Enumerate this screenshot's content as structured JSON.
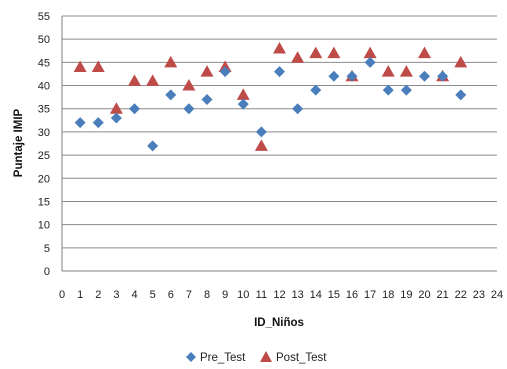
{
  "chart_data": {
    "type": "scatter",
    "xlabel": "ID_Niños",
    "ylabel": "Puntaje IMIP",
    "xlim": [
      0,
      24
    ],
    "ylim": [
      0,
      55
    ],
    "x_ticks": [
      "0",
      "1",
      "2",
      "3",
      "4",
      "5",
      "6",
      "7",
      "8",
      "9",
      "10",
      "11",
      "12",
      "13",
      "14",
      "15",
      "16",
      "17",
      "18",
      "19",
      "20",
      "21",
      "22",
      "23",
      "24"
    ],
    "y_ticks": [
      "0",
      "5",
      "10",
      "15",
      "20",
      "25",
      "30",
      "35",
      "40",
      "45",
      "50",
      "55"
    ],
    "grid": true,
    "legend_position": "bottom",
    "series": [
      {
        "name": "Pre_Test",
        "marker": "diamond",
        "color": "#4a7ebb",
        "points": [
          {
            "x": 1,
            "y": 32
          },
          {
            "x": 2,
            "y": 32
          },
          {
            "x": 3,
            "y": 33
          },
          {
            "x": 4,
            "y": 35
          },
          {
            "x": 5,
            "y": 27
          },
          {
            "x": 6,
            "y": 38
          },
          {
            "x": 7,
            "y": 35
          },
          {
            "x": 8,
            "y": 37
          },
          {
            "x": 9,
            "y": 43
          },
          {
            "x": 10,
            "y": 36
          },
          {
            "x": 11,
            "y": 30
          },
          {
            "x": 12,
            "y": 43
          },
          {
            "x": 13,
            "y": 35
          },
          {
            "x": 14,
            "y": 39
          },
          {
            "x": 15,
            "y": 42
          },
          {
            "x": 16,
            "y": 42
          },
          {
            "x": 17,
            "y": 45
          },
          {
            "x": 18,
            "y": 39
          },
          {
            "x": 19,
            "y": 39
          },
          {
            "x": 20,
            "y": 42
          },
          {
            "x": 21,
            "y": 42
          },
          {
            "x": 22,
            "y": 38
          }
        ]
      },
      {
        "name": "Post_Test",
        "marker": "triangle",
        "color": "#be4b48",
        "points": [
          {
            "x": 1,
            "y": 44
          },
          {
            "x": 2,
            "y": 44
          },
          {
            "x": 3,
            "y": 35
          },
          {
            "x": 4,
            "y": 41
          },
          {
            "x": 5,
            "y": 41
          },
          {
            "x": 6,
            "y": 45
          },
          {
            "x": 7,
            "y": 40
          },
          {
            "x": 8,
            "y": 43
          },
          {
            "x": 9,
            "y": 44
          },
          {
            "x": 10,
            "y": 38
          },
          {
            "x": 11,
            "y": 27
          },
          {
            "x": 12,
            "y": 48
          },
          {
            "x": 13,
            "y": 46
          },
          {
            "x": 14,
            "y": 47
          },
          {
            "x": 15,
            "y": 47
          },
          {
            "x": 16,
            "y": 42
          },
          {
            "x": 17,
            "y": 47
          },
          {
            "x": 18,
            "y": 43
          },
          {
            "x": 19,
            "y": 43
          },
          {
            "x": 20,
            "y": 47
          },
          {
            "x": 21,
            "y": 42
          },
          {
            "x": 22,
            "y": 45
          }
        ]
      }
    ]
  }
}
